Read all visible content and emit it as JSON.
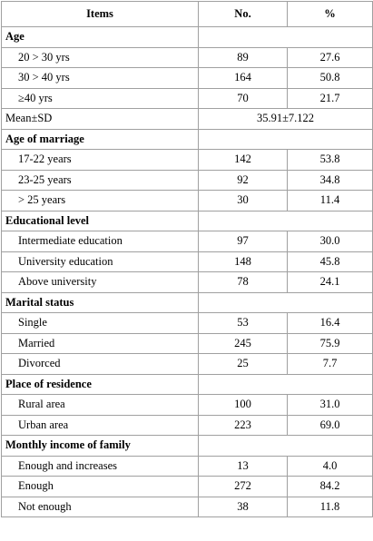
{
  "table": {
    "header": [
      "Items",
      "No.",
      "%"
    ],
    "sections": [
      {
        "title": "Age",
        "rows": [
          [
            "20 > 30 yrs",
            "89",
            "27.6"
          ],
          [
            "30 > 40 yrs",
            "164",
            "50.8"
          ],
          [
            "≥40 yrs",
            "70",
            "21.7"
          ]
        ],
        "summary": [
          "Mean±SD",
          "35.91±7.122"
        ]
      },
      {
        "title": "Age of marriage",
        "rows": [
          [
            "17-22 years",
            "142",
            "53.8"
          ],
          [
            "23-25 years",
            "92",
            "34.8"
          ],
          [
            "> 25 years",
            "30",
            "11.4"
          ]
        ]
      },
      {
        "title": "Educational level",
        "rows": [
          [
            "Intermediate education",
            "97",
            "30.0"
          ],
          [
            "University education",
            "148",
            "45.8"
          ],
          [
            "Above university",
            "78",
            "24.1"
          ]
        ]
      },
      {
        "title": "Marital status",
        "rows": [
          [
            "Single",
            "53",
            "16.4"
          ],
          [
            "Married",
            "245",
            "75.9"
          ],
          [
            "Divorced",
            "25",
            "7.7"
          ]
        ]
      },
      {
        "title": "Place of residence",
        "rows": [
          [
            "Rural area",
            "100",
            "31.0"
          ],
          [
            "Urban area",
            "223",
            "69.0"
          ]
        ]
      },
      {
        "title": "Monthly income of family",
        "rows": [
          [
            "Enough and increases",
            "13",
            "4.0"
          ],
          [
            "Enough",
            "272",
            "84.2"
          ],
          [
            "Not enough",
            "38",
            "11.8"
          ]
        ]
      }
    ]
  }
}
